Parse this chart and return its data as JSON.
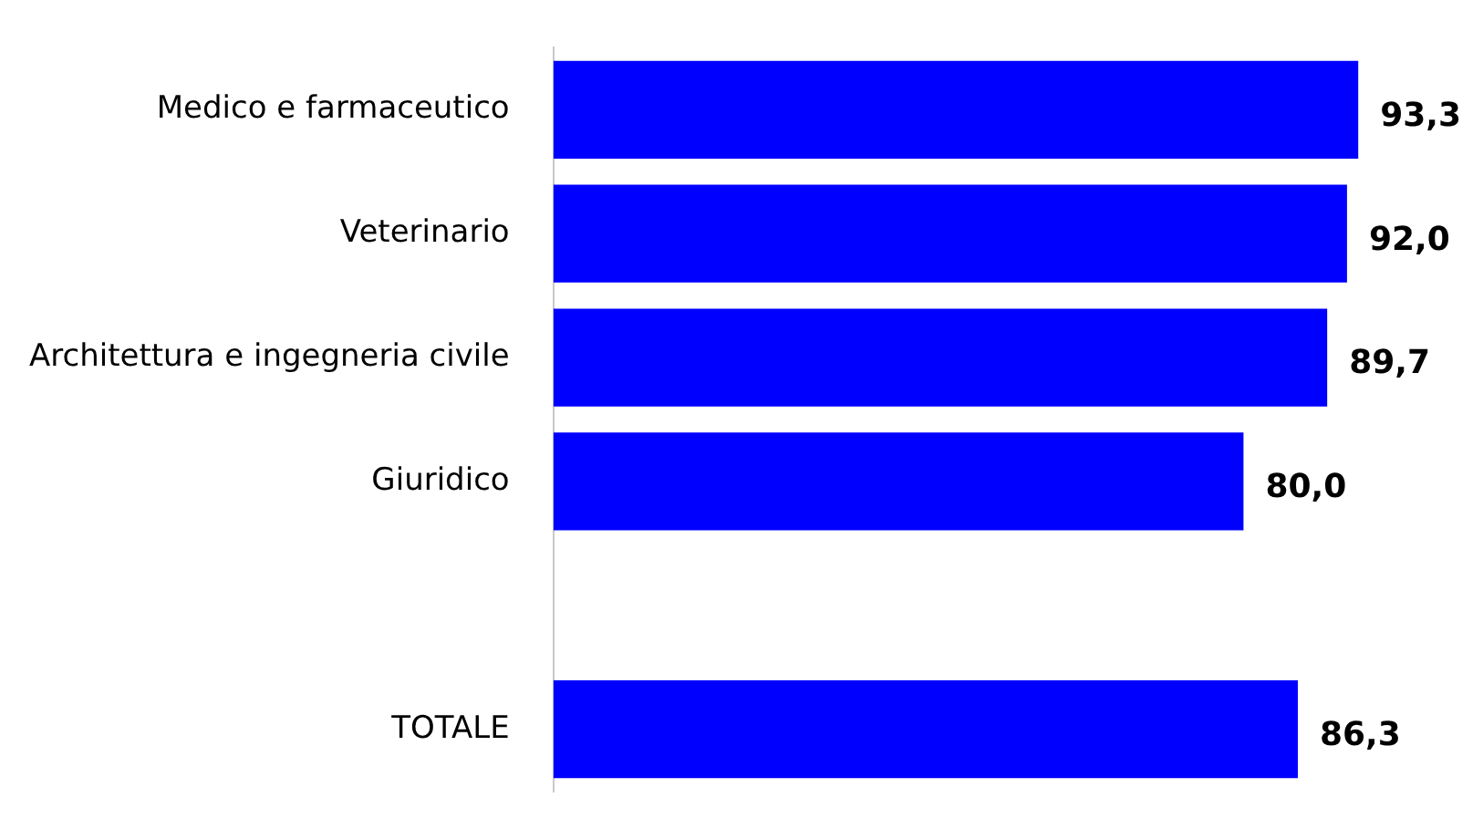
{
  "chart_data": {
    "type": "bar",
    "orientation": "horizontal",
    "categories": [
      "Medico e farmaceutico",
      "Veterinario",
      "Architettura e ingegneria civile",
      "Giuridico",
      null,
      "TOTALE"
    ],
    "values": [
      93.3,
      92.0,
      89.7,
      80.0,
      null,
      86.3
    ],
    "value_labels": [
      "93,3",
      "92,0",
      "89,7",
      "80,0",
      null,
      "86,3"
    ],
    "color": "#0000ff",
    "grid": false,
    "legend": false
  }
}
